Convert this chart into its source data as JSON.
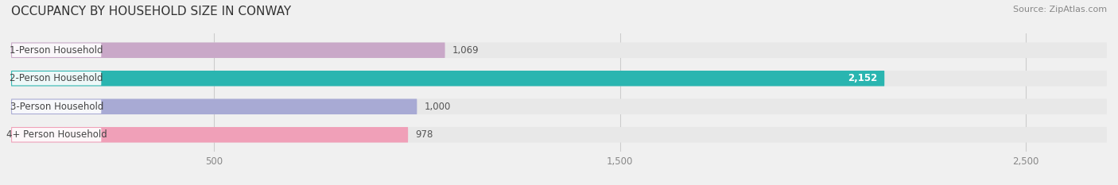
{
  "title": "OCCUPANCY BY HOUSEHOLD SIZE IN CONWAY",
  "source": "Source: ZipAtlas.com",
  "categories": [
    "1-Person Household",
    "2-Person Household",
    "3-Person Household",
    "4+ Person Household"
  ],
  "values": [
    1069,
    2152,
    1000,
    978
  ],
  "bar_colors": [
    "#c9a8c8",
    "#2ab5b0",
    "#a8aad4",
    "#f0a0b8"
  ],
  "label_colors": [
    "#555555",
    "#ffffff",
    "#555555",
    "#555555"
  ],
  "value_labels": [
    "1,069",
    "2,152",
    "1,000",
    "978"
  ],
  "xlim": [
    0,
    2700
  ],
  "xticks": [
    500,
    1500,
    2500
  ],
  "xtick_labels": [
    "500",
    "1,500",
    "2,500"
  ],
  "background_color": "#f0f0f0",
  "bar_background_color": "#e8e8e8",
  "title_fontsize": 11,
  "bar_height": 0.55,
  "figsize": [
    14.06,
    2.33
  ]
}
